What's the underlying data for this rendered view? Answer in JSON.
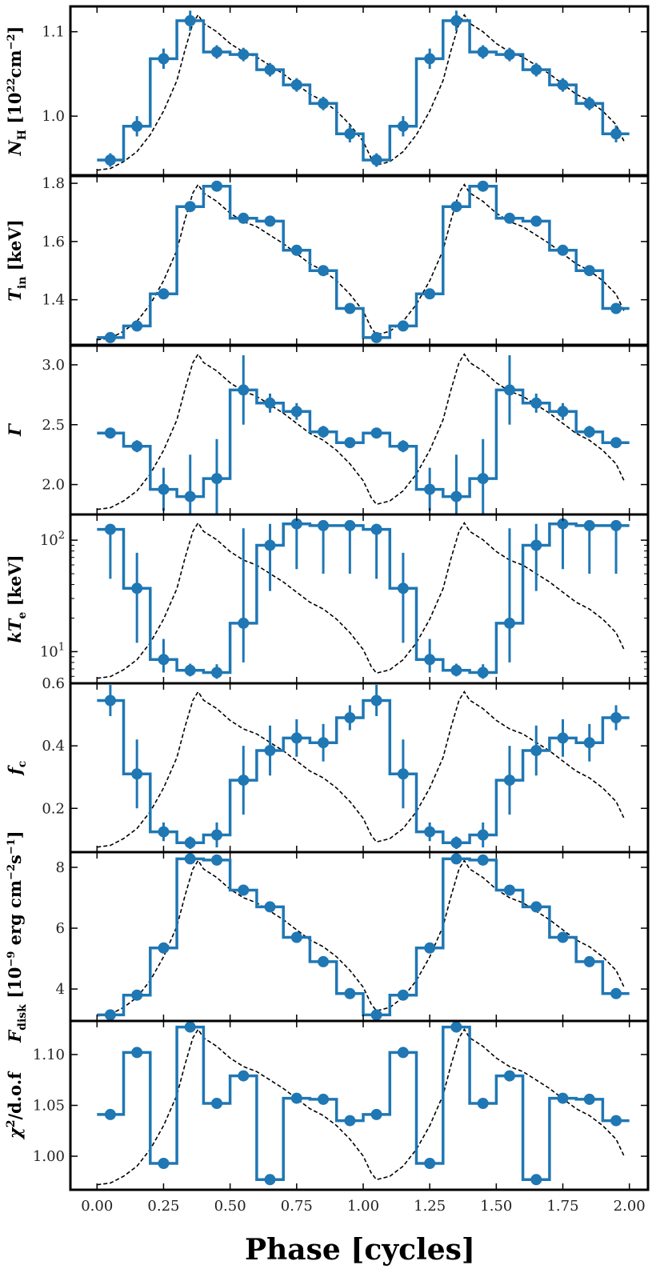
{
  "figure": {
    "xlabel": "Phase [cycles]"
  },
  "chart_data": {
    "type": "line",
    "x_ticks": [
      "0.00",
      "0.25",
      "0.50",
      "0.75",
      "1.00",
      "1.25",
      "1.50",
      "1.75",
      "2.00"
    ],
    "x_tick_values": [
      0,
      0.25,
      0.5,
      0.75,
      1.0,
      1.25,
      1.5,
      1.75,
      2.0
    ],
    "xlim": [
      -0.1,
      2.07
    ],
    "xlabel": "Phase [cycles]",
    "bin_edges": [
      0,
      0.1,
      0.2,
      0.3,
      0.4,
      0.5,
      0.6,
      0.7,
      0.8,
      0.9,
      1.0,
      1.1,
      1.2,
      1.3,
      1.4,
      1.5,
      1.6,
      1.7,
      1.8,
      1.9,
      2.0
    ],
    "bin_centers": [
      0.05,
      0.15,
      0.25,
      0.35,
      0.45,
      0.55,
      0.65,
      0.75,
      0.85,
      0.95,
      1.05,
      1.15,
      1.25,
      1.35,
      1.45,
      1.55,
      1.65,
      1.75,
      1.85,
      1.95
    ],
    "colors": {
      "data": "#1f77b4",
      "reference": "#000000",
      "frame": "#000000"
    },
    "reference_curve": {
      "style": "dashed",
      "x": [
        0.0,
        0.05,
        0.1,
        0.15,
        0.2,
        0.25,
        0.3,
        0.33,
        0.36,
        0.38,
        0.4,
        0.45,
        0.5,
        0.55,
        0.6,
        0.65,
        0.7,
        0.75,
        0.8,
        0.85,
        0.9,
        0.95,
        1.0,
        1.03,
        1.05,
        1.1,
        1.15,
        1.2,
        1.25,
        1.3,
        1.33,
        1.36,
        1.38,
        1.4,
        1.45,
        1.5,
        1.55,
        1.6,
        1.65,
        1.7,
        1.75,
        1.8,
        1.85,
        1.9,
        1.95,
        1.98
      ],
      "y": [
        0.03,
        0.04,
        0.08,
        0.14,
        0.24,
        0.38,
        0.56,
        0.74,
        0.9,
        0.95,
        0.9,
        0.85,
        0.78,
        0.73,
        0.7,
        0.65,
        0.6,
        0.54,
        0.48,
        0.44,
        0.38,
        0.3,
        0.2,
        0.1,
        0.06,
        0.08,
        0.14,
        0.24,
        0.38,
        0.56,
        0.74,
        0.9,
        0.95,
        0.9,
        0.85,
        0.78,
        0.73,
        0.7,
        0.65,
        0.6,
        0.54,
        0.48,
        0.44,
        0.38,
        0.3,
        0.2
      ]
    },
    "panels": [
      {
        "name": "nh",
        "label": "N_H [10^22 cm^-2]",
        "label_main": "N",
        "label_sub": "H",
        "label_rest": " [10",
        "label_sup": "22",
        "label_tail": "cm",
        "label_sup2": "−2",
        "label_close": "]",
        "scale": "linear",
        "ylim": [
          0.93,
          1.13
        ],
        "ticks": [
          1.0,
          1.1
        ],
        "tick_labels": [
          "1.0",
          "1.1"
        ],
        "values": [
          0.948,
          0.988,
          1.068,
          1.113,
          1.076,
          1.073,
          1.055,
          1.037,
          1.015,
          0.979,
          0.948,
          0.988,
          1.068,
          1.113,
          1.076,
          1.073,
          1.055,
          1.037,
          1.015,
          0.979
        ],
        "errors": [
          0.008,
          0.012,
          0.012,
          0.012,
          0.008,
          0.008,
          0.008,
          0.008,
          0.008,
          0.01,
          0.008,
          0.012,
          0.012,
          0.012,
          0.008,
          0.008,
          0.008,
          0.008,
          0.008,
          0.01
        ]
      },
      {
        "name": "tin",
        "label": "T_in [keV]",
        "label_main": "T",
        "label_sub": "in",
        "label_rest": " [keV]",
        "scale": "linear",
        "ylim": [
          1.245,
          1.825
        ],
        "ticks": [
          1.4,
          1.6,
          1.8
        ],
        "tick_labels": [
          "1.4",
          "1.6",
          "1.8"
        ],
        "values": [
          1.27,
          1.31,
          1.42,
          1.72,
          1.79,
          1.68,
          1.67,
          1.57,
          1.5,
          1.37,
          1.27,
          1.31,
          1.42,
          1.72,
          1.79,
          1.68,
          1.67,
          1.57,
          1.5,
          1.37
        ],
        "errors": [
          0.008,
          0.008,
          0.012,
          0.015,
          0.01,
          0.008,
          0.008,
          0.01,
          0.008,
          0.008,
          0.008,
          0.008,
          0.012,
          0.015,
          0.01,
          0.008,
          0.008,
          0.01,
          0.008,
          0.008
        ]
      },
      {
        "name": "gamma",
        "label": "Γ",
        "label_main": "Γ",
        "scale": "linear",
        "ylim": [
          1.75,
          3.16
        ],
        "ticks": [
          2.0,
          2.5,
          3.0
        ],
        "tick_labels": [
          "2.0",
          "2.5",
          "3.0"
        ],
        "values": [
          2.43,
          2.32,
          1.96,
          1.9,
          2.05,
          2.79,
          2.68,
          2.61,
          2.44,
          2.35,
          2.43,
          2.32,
          1.96,
          1.9,
          2.05,
          2.79,
          2.68,
          2.61,
          2.44,
          2.35
        ],
        "errors": [
          0.04,
          0.05,
          0.18,
          0.35,
          0.33,
          0.29,
          0.08,
          0.07,
          0.05,
          0.04,
          0.04,
          0.05,
          0.18,
          0.35,
          0.33,
          0.29,
          0.08,
          0.07,
          0.05,
          0.04
        ],
        "upper_bars": [
          2.43,
          2.32,
          1.96,
          1.9,
          2.05,
          2.79,
          2.68,
          2.61,
          2.44,
          2.35,
          2.43,
          2.32,
          1.96,
          1.9,
          2.05,
          2.79,
          2.68,
          2.61,
          2.44,
          2.35
        ]
      },
      {
        "name": "kte",
        "label": "kT_e [keV]",
        "label_main": "kT",
        "label_sub": "e",
        "label_rest": " [keV]",
        "scale": "log",
        "ylim": [
          5.2,
          170
        ],
        "ticks": [
          10,
          100
        ],
        "tick_labels": [
          "10^1",
          "10^2"
        ],
        "values": [
          125,
          37,
          8.5,
          6.8,
          6.5,
          18,
          90,
          140,
          135,
          135,
          125,
          37,
          8.5,
          6.8,
          6.5,
          18,
          90,
          140,
          135,
          135
        ],
        "err_low": [
          80,
          25,
          2,
          0.8,
          0.8,
          10,
          55,
          85,
          85,
          85,
          80,
          25,
          2,
          0.8,
          0.8,
          10,
          55,
          85,
          85,
          85
        ],
        "err_high": [
          15,
          40,
          4.5,
          1.0,
          1.2,
          110,
          50,
          12,
          12,
          12,
          15,
          40,
          4.5,
          1.0,
          1.2,
          110,
          50,
          12,
          12,
          12
        ]
      },
      {
        "name": "fc",
        "label": "f_c",
        "label_main": "f",
        "label_sub": "c",
        "scale": "linear",
        "ylim": [
          0.06,
          0.6
        ],
        "ticks": [
          0.2,
          0.4,
          0.6
        ],
        "tick_labels": [
          "0.2",
          "0.4",
          "0.6"
        ],
        "values": [
          0.545,
          0.31,
          0.125,
          0.09,
          0.115,
          0.29,
          0.385,
          0.425,
          0.41,
          0.49,
          0.545,
          0.31,
          0.125,
          0.09,
          0.115,
          0.29,
          0.385,
          0.425,
          0.41,
          0.49
        ],
        "errors": [
          0.05,
          0.11,
          0.03,
          0.02,
          0.04,
          0.11,
          0.08,
          0.06,
          0.06,
          0.04,
          0.05,
          0.11,
          0.03,
          0.02,
          0.04,
          0.11,
          0.08,
          0.06,
          0.06,
          0.04
        ]
      },
      {
        "name": "fdisk",
        "label": "F_disk [10^-9 erg cm^-2 s^-1]",
        "label_main": "F",
        "label_sub": "disk",
        "label_rest": " [10",
        "label_sup": "−9",
        "label_tail": " erg cm",
        "label_sup2": "−2",
        "label_tail2": "s",
        "label_sup3": "−1",
        "label_close": "]",
        "scale": "linear",
        "ylim": [
          2.95,
          8.5
        ],
        "ticks": [
          4,
          6,
          8
        ],
        "tick_labels": [
          "4",
          "6",
          "8"
        ],
        "values": [
          3.15,
          3.8,
          5.35,
          8.28,
          8.24,
          7.25,
          6.7,
          5.7,
          4.9,
          3.85,
          3.15,
          3.8,
          5.35,
          8.28,
          8.24,
          7.25,
          6.7,
          5.7,
          4.9,
          3.85
        ],
        "errors": [
          0.05,
          0.06,
          0.08,
          0.1,
          0.1,
          0.08,
          0.08,
          0.06,
          0.06,
          0.05,
          0.05,
          0.06,
          0.08,
          0.1,
          0.1,
          0.08,
          0.08,
          0.06,
          0.06,
          0.05
        ]
      },
      {
        "name": "chi2",
        "label": "χ²/d.o.f",
        "label_main": "χ",
        "label_sup": "2",
        "label_rest": "/d.o.f",
        "scale": "linear",
        "ylim": [
          0.967,
          1.133
        ],
        "ticks": [
          1.0,
          1.05,
          1.1
        ],
        "tick_labels": [
          "1.00",
          "1.05",
          "1.10"
        ],
        "values": [
          1.041,
          1.102,
          0.993,
          1.127,
          1.052,
          1.079,
          0.977,
          1.057,
          1.056,
          1.035,
          1.041,
          1.102,
          0.993,
          1.127,
          1.052,
          1.079,
          0.977,
          1.057,
          1.056,
          1.035
        ],
        "errors": [
          0,
          0,
          0,
          0,
          0,
          0,
          0,
          0,
          0,
          0,
          0,
          0,
          0,
          0,
          0,
          0,
          0,
          0,
          0,
          0
        ]
      }
    ]
  }
}
